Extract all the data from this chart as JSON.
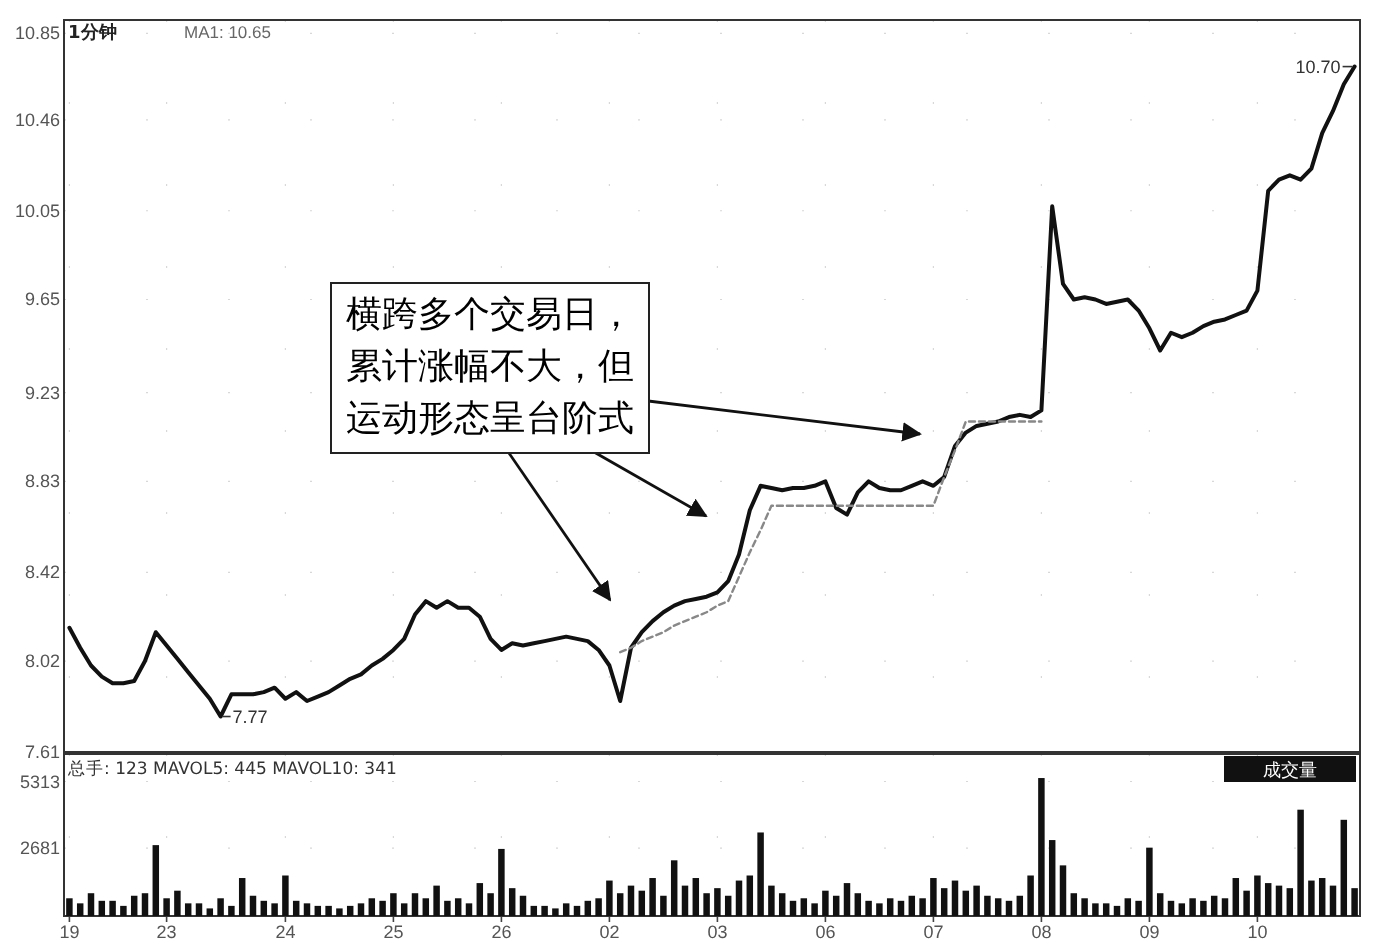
{
  "chart_data": [
    {
      "type": "line",
      "ylim": [
        7.61,
        10.91
      ],
      "yticks": [
        7.61,
        8.02,
        8.42,
        8.83,
        9.23,
        9.65,
        10.05,
        10.46,
        10.85
      ],
      "tick_labels": "y",
      "grid": true,
      "categories": [
        "19",
        null,
        null,
        null,
        null,
        null,
        null,
        null,
        null,
        "23",
        null,
        null,
        null,
        null,
        null,
        null,
        null,
        null,
        null,
        null,
        "24",
        null,
        null,
        null,
        null,
        null,
        null,
        null,
        null,
        null,
        "25",
        null,
        null,
        null,
        null,
        null,
        null,
        null,
        null,
        null,
        "26",
        null,
        null,
        null,
        null,
        null,
        null,
        null,
        null,
        null,
        "02",
        null,
        null,
        null,
        null,
        null,
        null,
        null,
        null,
        null,
        "03",
        null,
        null,
        null,
        null,
        null,
        null,
        null,
        null,
        null,
        "06",
        null,
        null,
        null,
        null,
        null,
        null,
        null,
        null,
        null,
        "07",
        null,
        null,
        null,
        null,
        null,
        null,
        null,
        null,
        null,
        "08",
        null,
        null,
        null,
        null,
        null,
        null,
        null,
        null,
        null,
        "09",
        null,
        null,
        null,
        null,
        null,
        null,
        null,
        null,
        null,
        "10",
        null,
        null,
        null,
        null,
        null,
        null,
        null,
        null,
        null
      ],
      "annotations": [
        "1分钟",
        "MA1: 10.65",
        "7.77",
        "10.70",
        "横跨多个交易日，累计涨幅不大，但运动形态呈台阶式"
      ],
      "series": [
        {
          "color": "#111111",
          "values": [
            8.17,
            8.08,
            8.0,
            7.95,
            7.92,
            7.92,
            7.93,
            8.02,
            8.15,
            8.09,
            8.03,
            7.97,
            7.91,
            7.85,
            7.77,
            7.87,
            7.87,
            7.87,
            7.88,
            7.9,
            7.85,
            7.88,
            7.84,
            7.86,
            7.88,
            7.91,
            7.94,
            7.96,
            8.0,
            8.03,
            8.07,
            8.12,
            8.23,
            8.29,
            8.26,
            8.29,
            8.26,
            8.26,
            8.22,
            8.12,
            8.07,
            8.1,
            8.09,
            8.1,
            8.11,
            8.12,
            8.13,
            8.12,
            8.11,
            8.07,
            8.0,
            7.84,
            8.08,
            8.15,
            8.2,
            8.24,
            8.27,
            8.29,
            8.3,
            8.31,
            8.33,
            8.38,
            8.5,
            8.7,
            8.81,
            8.8,
            8.79,
            8.8,
            8.8,
            8.81,
            8.83,
            8.71,
            8.68,
            8.78,
            8.83,
            8.8,
            8.79,
            8.79,
            8.81,
            8.83,
            8.81,
            8.85,
            8.99,
            9.05,
            9.08,
            9.09,
            9.1,
            9.12,
            9.13,
            9.12,
            9.15,
            10.07,
            9.72,
            9.65,
            9.66,
            9.65,
            9.63,
            9.64,
            9.65,
            9.6,
            9.52,
            9.42,
            9.5,
            9.48,
            9.5,
            9.53,
            9.55,
            9.56,
            9.58,
            9.6,
            9.69,
            10.14,
            10.19,
            10.21,
            10.19,
            10.24,
            10.4,
            10.5,
            10.62,
            10.7
          ]
        },
        {
          "color": "#888888",
          "line_style": "dashed",
          "values": [
            null,
            null,
            null,
            null,
            null,
            null,
            null,
            null,
            null,
            null,
            null,
            null,
            null,
            null,
            null,
            null,
            null,
            null,
            null,
            null,
            null,
            null,
            null,
            null,
            null,
            null,
            null,
            null,
            null,
            null,
            null,
            null,
            null,
            null,
            null,
            null,
            null,
            null,
            null,
            null,
            null,
            null,
            null,
            null,
            null,
            null,
            null,
            null,
            null,
            null,
            null,
            8.06,
            8.08,
            8.11,
            8.13,
            8.15,
            8.18,
            8.2,
            8.22,
            8.24,
            8.27,
            8.29,
            8.4,
            8.51,
            8.61,
            8.72,
            8.72,
            8.72,
            8.72,
            8.72,
            8.72,
            8.72,
            8.72,
            8.72,
            8.72,
            8.72,
            8.72,
            8.72,
            8.72,
            8.72,
            8.72,
            8.85,
            8.97,
            9.1,
            9.1,
            9.1,
            9.1,
            9.1,
            9.1,
            9.1,
            9.1,
            null,
            null,
            null,
            null,
            null,
            null,
            null,
            null,
            null,
            null,
            null,
            null,
            null,
            null,
            null,
            null,
            null,
            null,
            null,
            null,
            null,
            null,
            null,
            null,
            null,
            null,
            null,
            null,
            null
          ]
        }
      ]
    },
    {
      "type": "bar",
      "ylim": [
        0,
        6400
      ],
      "yticks": [
        2681,
        5313
      ],
      "grid": true,
      "categories": [
        "19",
        null,
        null,
        null,
        null,
        null,
        null,
        null,
        null,
        "23",
        null,
        null,
        null,
        null,
        null,
        null,
        null,
        null,
        null,
        null,
        "24",
        null,
        null,
        null,
        null,
        null,
        null,
        null,
        null,
        null,
        "25",
        null,
        null,
        null,
        null,
        null,
        null,
        null,
        null,
        null,
        "26",
        null,
        null,
        null,
        null,
        null,
        null,
        null,
        null,
        null,
        "02",
        null,
        null,
        null,
        null,
        null,
        null,
        null,
        null,
        null,
        "03",
        null,
        null,
        null,
        null,
        null,
        null,
        null,
        null,
        null,
        "06",
        null,
        null,
        null,
        null,
        null,
        null,
        null,
        null,
        null,
        "07",
        null,
        null,
        null,
        null,
        null,
        null,
        null,
        null,
        null,
        "08",
        null,
        null,
        null,
        null,
        null,
        null,
        null,
        null,
        null,
        "09",
        null,
        null,
        null,
        null,
        null,
        null,
        null,
        null,
        null,
        "10",
        null,
        null,
        null,
        null,
        null,
        null,
        null,
        null,
        null
      ],
      "annotations": [
        "总手: 123 MAVOL5: 445 MAVOL10: 341",
        "成交量"
      ],
      "series": [
        {
          "color": "#111111",
          "values": [
            700,
            500,
            900,
            600,
            600,
            400,
            800,
            900,
            2800,
            700,
            1000,
            500,
            500,
            300,
            700,
            400,
            1500,
            800,
            600,
            500,
            1600,
            600,
            500,
            400,
            400,
            300,
            400,
            500,
            700,
            600,
            900,
            500,
            900,
            700,
            1200,
            600,
            700,
            500,
            1300,
            900,
            2650,
            1100,
            800,
            400,
            400,
            300,
            500,
            400,
            600,
            700,
            1400,
            900,
            1200,
            1000,
            1500,
            800,
            2200,
            1200,
            1500,
            900,
            1100,
            800,
            1400,
            1600,
            3300,
            1200,
            900,
            600,
            700,
            500,
            1000,
            800,
            1300,
            900,
            600,
            500,
            700,
            600,
            800,
            700,
            1500,
            1100,
            1400,
            1000,
            1200,
            800,
            700,
            600,
            800,
            1600,
            5450,
            3000,
            2000,
            900,
            700,
            500,
            500,
            400,
            700,
            600,
            2700,
            900,
            600,
            500,
            700,
            600,
            800,
            700,
            1500,
            1000,
            1600,
            1300,
            1200,
            1100,
            4200,
            1400,
            1500,
            1200,
            3800,
            1100
          ]
        }
      ]
    }
  ]
}
